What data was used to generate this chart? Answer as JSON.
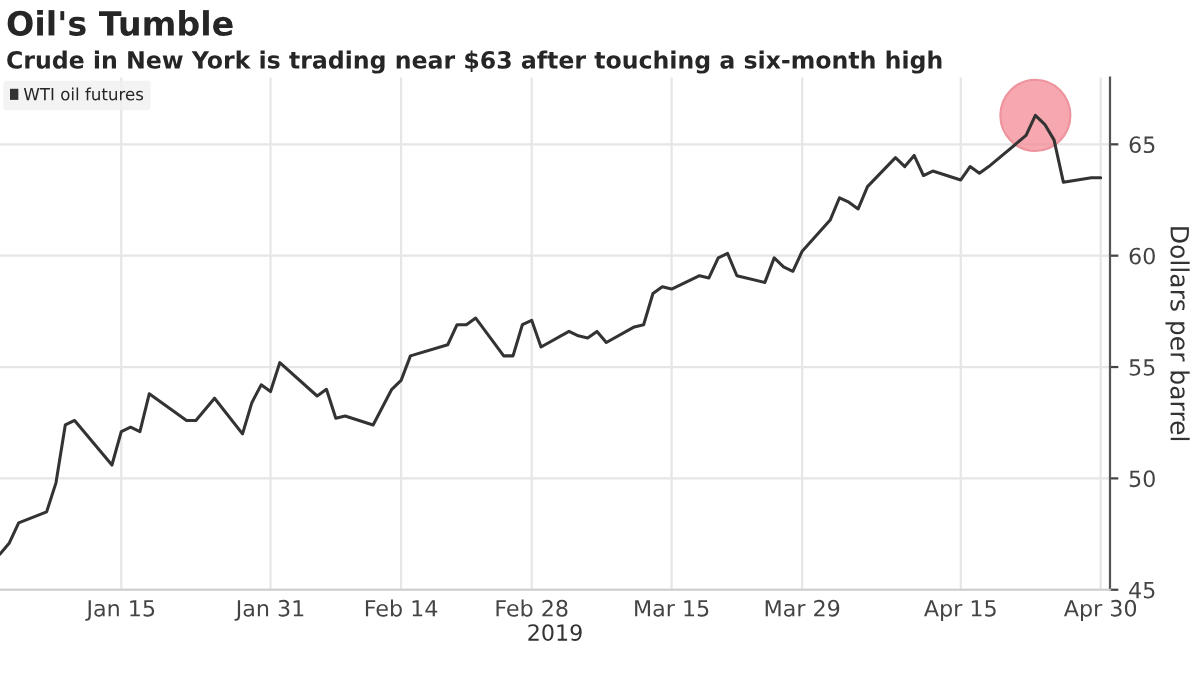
{
  "chart_data": {
    "type": "line",
    "title": "Oil's Tumble",
    "subtitle": "Crude in New York is trading near $63 after touching a six-month high",
    "xlabel": "2019",
    "ylabel": "Dollars per barrel",
    "x": [
      "2019-01-02",
      "2019-01-03",
      "2019-01-04",
      "2019-01-07",
      "2019-01-08",
      "2019-01-09",
      "2019-01-10",
      "2019-01-14",
      "2019-01-15",
      "2019-01-16",
      "2019-01-17",
      "2019-01-18",
      "2019-01-22",
      "2019-01-23",
      "2019-01-25",
      "2019-01-28",
      "2019-01-29",
      "2019-01-30",
      "2019-01-31",
      "2019-02-01",
      "2019-02-05",
      "2019-02-06",
      "2019-02-07",
      "2019-02-08",
      "2019-02-11",
      "2019-02-13",
      "2019-02-14",
      "2019-02-15",
      "2019-02-19",
      "2019-02-20",
      "2019-02-21",
      "2019-02-22",
      "2019-02-25",
      "2019-02-26",
      "2019-02-27",
      "2019-02-28",
      "2019-03-01",
      "2019-03-04",
      "2019-03-05",
      "2019-03-06",
      "2019-03-07",
      "2019-03-08",
      "2019-03-11",
      "2019-03-12",
      "2019-03-13",
      "2019-03-14",
      "2019-03-15",
      "2019-03-18",
      "2019-03-19",
      "2019-03-20",
      "2019-03-21",
      "2019-03-22",
      "2019-03-25",
      "2019-03-26",
      "2019-03-27",
      "2019-03-28",
      "2019-03-29",
      "2019-04-01",
      "2019-04-02",
      "2019-04-03",
      "2019-04-04",
      "2019-04-05",
      "2019-04-08",
      "2019-04-09",
      "2019-04-10",
      "2019-04-11",
      "2019-04-12",
      "2019-04-15",
      "2019-04-16",
      "2019-04-17",
      "2019-04-18",
      "2019-04-22",
      "2019-04-23",
      "2019-04-24",
      "2019-04-25",
      "2019-04-26",
      "2019-04-29",
      "2019-04-30"
    ],
    "series": [
      {
        "name": "WTI oil futures",
        "color": "#333333",
        "values": [
          46.6,
          47.1,
          48.0,
          48.5,
          49.8,
          52.4,
          52.6,
          50.6,
          52.1,
          52.3,
          52.1,
          53.8,
          52.6,
          52.6,
          53.6,
          52.0,
          53.4,
          54.2,
          53.9,
          55.2,
          53.7,
          54.0,
          52.7,
          52.8,
          52.4,
          54.0,
          54.4,
          55.5,
          56.0,
          56.9,
          56.9,
          57.2,
          55.5,
          55.5,
          56.9,
          57.1,
          55.9,
          56.6,
          56.4,
          56.3,
          56.6,
          56.1,
          56.8,
          56.9,
          58.3,
          58.6,
          58.5,
          59.1,
          59.0,
          59.9,
          60.1,
          59.1,
          58.8,
          59.9,
          59.5,
          59.3,
          60.2,
          61.6,
          62.6,
          62.4,
          62.1,
          63.1,
          64.4,
          64.0,
          64.5,
          63.6,
          63.8,
          63.4,
          64.0,
          63.7,
          64.0,
          65.4,
          66.3,
          65.9,
          65.2,
          63.3,
          63.5,
          63.5
        ]
      }
    ],
    "xlim": [
      "2019-01-02",
      "2019-05-01"
    ],
    "xticks": [
      {
        "value": "2019-01-15",
        "label": "Jan 15"
      },
      {
        "value": "2019-01-31",
        "label": "Jan 31"
      },
      {
        "value": "2019-02-14",
        "label": "Feb 14"
      },
      {
        "value": "2019-02-28",
        "label": "Feb 28"
      },
      {
        "value": "2019-03-15",
        "label": "Mar 15"
      },
      {
        "value": "2019-03-29",
        "label": "Mar 29"
      },
      {
        "value": "2019-04-15",
        "label": "Apr 15"
      },
      {
        "value": "2019-04-30",
        "label": "Apr 30"
      }
    ],
    "ylim": [
      45,
      68
    ],
    "yticks": [
      45,
      50,
      55,
      60,
      65
    ],
    "grid": true,
    "legend": "top left",
    "line_style": "solid"
  }
}
